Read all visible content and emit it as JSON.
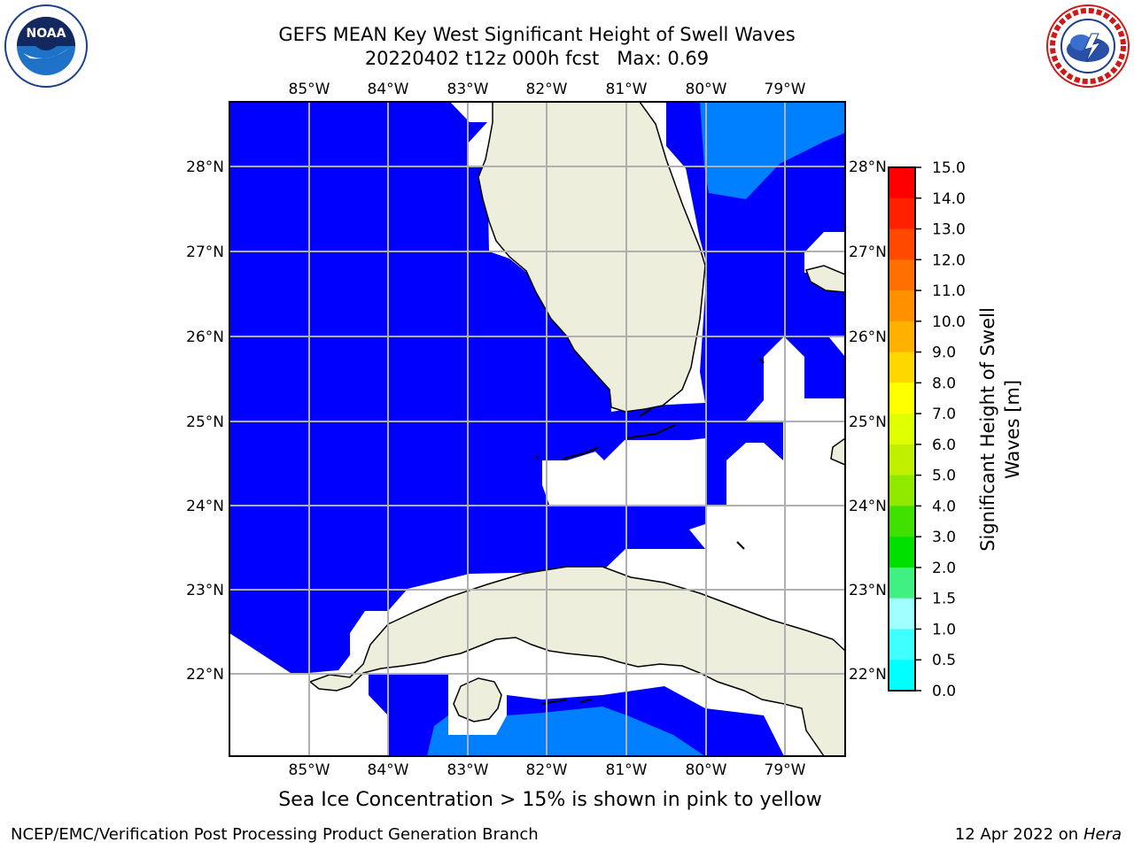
{
  "title": {
    "line1": "GEFS MEAN Key West Significant Height of Swell Waves",
    "line2": "20220402 t12z 000h fcst   Max: 0.69"
  },
  "map": {
    "lon_labels": [
      "85°W",
      "84°W",
      "83°W",
      "82°W",
      "81°W",
      "80°W",
      "79°W"
    ],
    "lat_labels": [
      "28°N",
      "27°N",
      "26°N",
      "25°N",
      "24°N",
      "23°N",
      "22°N"
    ],
    "colors": {
      "ocean_low": "#0000ff",
      "ocean_mid": "#0080ff",
      "land": "#eeeedc",
      "grid": "#b0b0b0",
      "no_data": "#ffffff"
    }
  },
  "colorbar": {
    "label": "Significant Height of Swell Waves [m]",
    "label_line1": "Significant Height of Swell",
    "label_line2": "Waves [m]",
    "ticks": [
      "15.0",
      "14.0",
      "13.0",
      "12.0",
      "11.0",
      "10.0",
      "9.0",
      "8.0",
      "7.0",
      "6.0",
      "5.0",
      "4.0",
      "3.0",
      "2.0",
      "1.5",
      "1.0",
      "0.5",
      "0.0"
    ],
    "colors_top_to_bottom": [
      "#ff0000",
      "#ff2000",
      "#ff4800",
      "#ff7000",
      "#ff9000",
      "#ffb000",
      "#ffd800",
      "#ffff00",
      "#e0ff00",
      "#c0f000",
      "#90ea00",
      "#40e000",
      "#00e000",
      "#40f080",
      "#a0ffff",
      "#40ffff",
      "#00ffff",
      "#0080ff",
      "#0000ff"
    ]
  },
  "logos": {
    "noaa_text": "NOAA",
    "nws_text": "NATIONAL WEATHER SERVICE"
  },
  "caption": "Sea Ice Concentration > 15% is shown in pink to yellow",
  "footer": {
    "left": "NCEP/EMC/Verification Post Processing Product Generation Branch",
    "right_prefix": "12 Apr 2022 on ",
    "right_host": "Hera"
  }
}
